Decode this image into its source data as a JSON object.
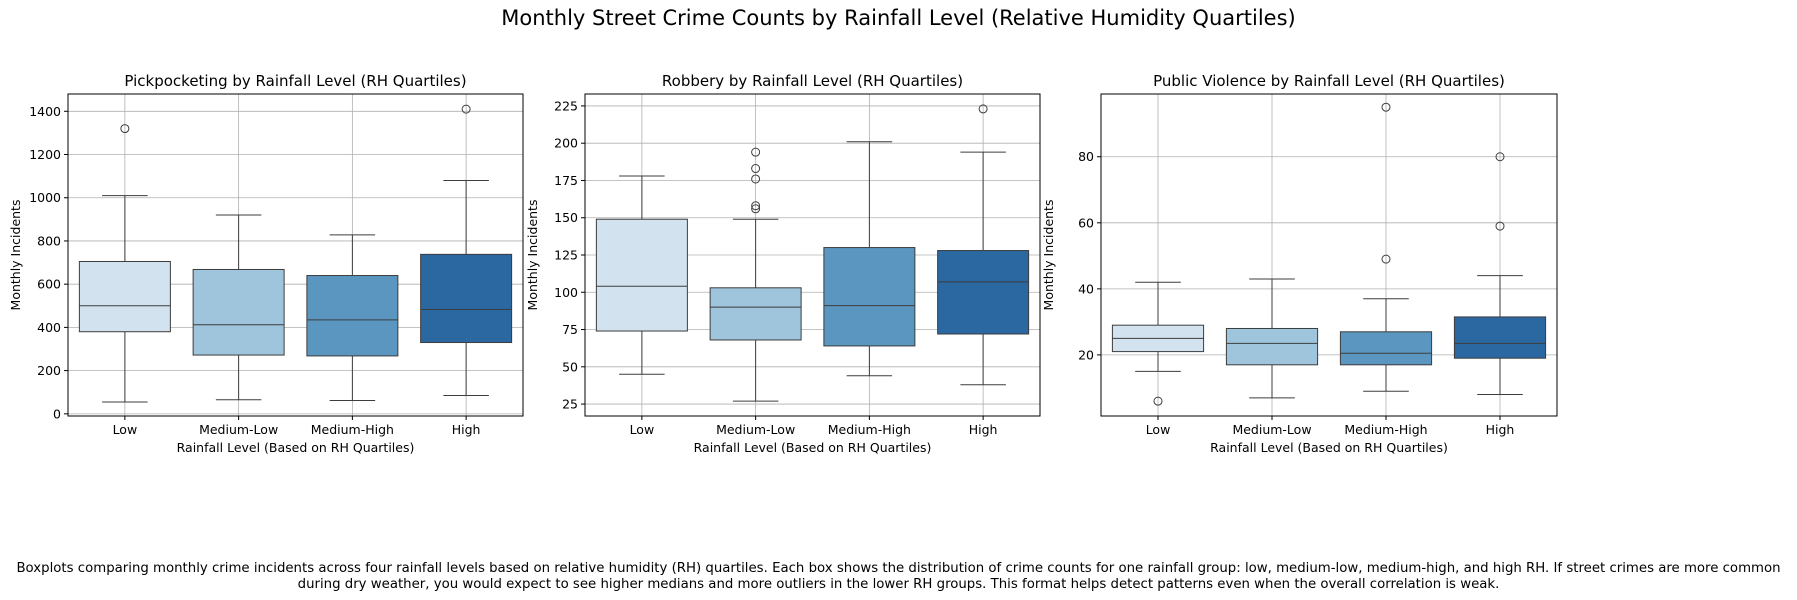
{
  "figure": {
    "title": "Monthly Street Crime Counts by Rainfall Level (Relative Humidity Quartiles)",
    "caption": "Boxplots comparing monthly crime incidents across four rainfall levels based on relative humidity (RH) quartiles. Each box shows the distribution of crime counts for one rainfall group: low, medium-low, medium-high, and high RH. If street crimes are more common during dry weather, you would expect to see higher medians and more outliers in the lower RH groups. This format helps detect patterns even when the overall correlation is weak."
  },
  "palette": [
    "#d3e2ef",
    "#9ec5db",
    "#5a96c0",
    "#2b67a0"
  ],
  "chart_data": [
    {
      "type": "box",
      "title": "Pickpocketing by Rainfall Level (RH Quartiles)",
      "xlabel": "Rainfall Level (Based on RH Quartiles)",
      "ylabel": "Monthly Incidents",
      "categories": [
        "Low",
        "Medium-Low",
        "Medium-High",
        "High"
      ],
      "ylim": [
        -10,
        1480
      ],
      "yticks": [
        0,
        200,
        400,
        600,
        800,
        1000,
        1200,
        1400
      ],
      "grid": true,
      "boxes": [
        {
          "whisker_low": 55,
          "q1": 380,
          "median": 500,
          "q3": 705,
          "whisker_high": 1010,
          "outliers": [
            1320
          ]
        },
        {
          "whisker_low": 65,
          "q1": 272,
          "median": 412,
          "q3": 668,
          "whisker_high": 920,
          "outliers": []
        },
        {
          "whisker_low": 62,
          "q1": 268,
          "median": 435,
          "q3": 640,
          "whisker_high": 828,
          "outliers": []
        },
        {
          "whisker_low": 85,
          "q1": 330,
          "median": 483,
          "q3": 738,
          "whisker_high": 1080,
          "outliers": [
            1410
          ]
        }
      ]
    },
    {
      "type": "box",
      "title": "Robbery by Rainfall Level (RH Quartiles)",
      "xlabel": "Rainfall Level (Based on RH Quartiles)",
      "ylabel": "Monthly Incidents",
      "categories": [
        "Low",
        "Medium-Low",
        "Medium-High",
        "High"
      ],
      "ylim": [
        17,
        233
      ],
      "yticks": [
        25,
        50,
        75,
        100,
        125,
        150,
        175,
        200,
        225
      ],
      "grid": true,
      "boxes": [
        {
          "whisker_low": 45,
          "q1": 74,
          "median": 104,
          "q3": 149,
          "whisker_high": 178,
          "outliers": []
        },
        {
          "whisker_low": 27,
          "q1": 68,
          "median": 90,
          "q3": 103,
          "whisker_high": 149,
          "outliers": [
            156,
            158,
            176,
            183,
            194
          ]
        },
        {
          "whisker_low": 44,
          "q1": 64,
          "median": 91,
          "q3": 130,
          "whisker_high": 201,
          "outliers": []
        },
        {
          "whisker_low": 38,
          "q1": 72,
          "median": 107,
          "q3": 128,
          "whisker_high": 194,
          "outliers": [
            223
          ]
        }
      ]
    },
    {
      "type": "box",
      "title": "Public Violence by Rainfall Level (RH Quartiles)",
      "xlabel": "Rainfall Level (Based on RH Quartiles)",
      "ylabel": "Monthly Incidents",
      "categories": [
        "Low",
        "Medium-Low",
        "Medium-High",
        "High"
      ],
      "ylim": [
        1.5,
        99
      ],
      "yticks": [
        20,
        40,
        60,
        80
      ],
      "grid": true,
      "boxes": [
        {
          "whisker_low": 15,
          "q1": 21,
          "median": 25,
          "q3": 29,
          "whisker_high": 42,
          "outliers": [
            6
          ]
        },
        {
          "whisker_low": 7,
          "q1": 17,
          "median": 23.5,
          "q3": 28,
          "whisker_high": 43,
          "outliers": []
        },
        {
          "whisker_low": 9,
          "q1": 17,
          "median": 20.5,
          "q3": 27,
          "whisker_high": 37,
          "outliers": [
            49,
            95
          ]
        },
        {
          "whisker_low": 8,
          "q1": 19,
          "median": 23.5,
          "q3": 31.5,
          "whisker_high": 44,
          "outliers": [
            59,
            80
          ]
        }
      ]
    }
  ]
}
